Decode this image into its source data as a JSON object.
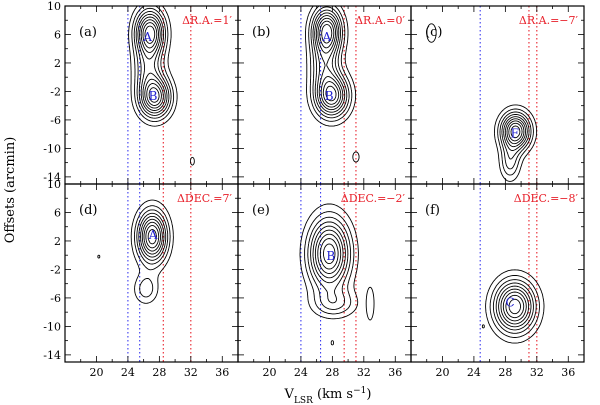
{
  "chart_data": {
    "type": "contour",
    "xlabel": "V",
    "xlabel_sub": "LSR",
    "xlabel_unit": " (km s",
    "xlabel_sup": "−1",
    "xlabel_close": ")",
    "ylabel": "Offsets (arcmin)",
    "xlim": [
      16,
      38
    ],
    "ylim": [
      -15,
      10
    ],
    "xticks": [
      20,
      24,
      28,
      32,
      36
    ],
    "yticks": [
      10,
      6,
      2,
      -2,
      -6,
      -10,
      -14
    ],
    "colors": {
      "blue_line": "#3a3af0",
      "red_line": "#e8202a",
      "offset_text": "#e8202a",
      "component_text": "#2020d0"
    },
    "panels": [
      {
        "label": "(a)",
        "offset": "ΔR.A.=1′",
        "blue_lines": [
          24,
          25.5
        ],
        "red_lines": [
          28.5,
          32
        ],
        "components": [
          {
            "name": "A",
            "v": 26.5,
            "offset": 5.8
          },
          {
            "name": "B",
            "v": 27.2,
            "offset": -2.5
          }
        ],
        "peaks": [
          {
            "v": 26.8,
            "o": 6.2,
            "sv": 1.3,
            "so": 2.3,
            "amp": 1.0
          },
          {
            "v": 27.4,
            "o": -2.8,
            "sv": 1.4,
            "so": 2.0,
            "amp": 0.95
          },
          {
            "v": 26.6,
            "o": 1.2,
            "sv": 1.3,
            "so": 2.2,
            "amp": 0.38
          }
        ],
        "blobs": [
          {
            "v": 32.2,
            "o": -11.8,
            "rv": 0.25,
            "ro": 0.55
          }
        ]
      },
      {
        "label": "(b)",
        "offset": "ΔR.A.=0′",
        "blue_lines": [
          24,
          26.5
        ],
        "red_lines": [
          29.5,
          31
        ],
        "components": [
          {
            "name": "A",
            "v": 27.3,
            "offset": 5.8
          },
          {
            "name": "B",
            "v": 27.6,
            "offset": -2.5
          }
        ],
        "peaks": [
          {
            "v": 27.3,
            "o": 6.4,
            "sv": 1.3,
            "so": 2.3,
            "amp": 1.0
          },
          {
            "v": 27.9,
            "o": -2.6,
            "sv": 1.5,
            "so": 2.1,
            "amp": 0.95
          },
          {
            "v": 27.0,
            "o": 1.6,
            "sv": 1.3,
            "so": 2.2,
            "amp": 0.4
          }
        ],
        "blobs": [
          {
            "v": 31.0,
            "o": -11.2,
            "rv": 0.4,
            "ro": 0.7
          }
        ]
      },
      {
        "label": "(c)",
        "offset": "ΔR.A.=−7′",
        "blue_lines": [
          24.8
        ],
        "red_lines": [
          31,
          32
        ],
        "components": [
          {
            "name": "F",
            "v": 29.2,
            "offset": -7.8
          }
        ],
        "peaks": [
          {
            "v": 29.3,
            "o": -7.6,
            "sv": 1.3,
            "so": 1.8,
            "amp": 1.0
          },
          {
            "v": 28.6,
            "o": -12.0,
            "sv": 0.9,
            "so": 1.8,
            "amp": 0.35
          }
        ],
        "blobs": [
          {
            "v": 18.6,
            "o": 6.2,
            "rv": 0.6,
            "ro": 1.3
          }
        ]
      },
      {
        "label": "(d)",
        "offset": "ΔDEC.=7′",
        "blue_lines": [
          24,
          25.5
        ],
        "red_lines": [
          28.5,
          32
        ],
        "components": [
          {
            "name": "A",
            "v": 27.2,
            "offset": 3.0
          }
        ],
        "peaks": [
          {
            "v": 27.1,
            "o": 2.6,
            "sv": 1.3,
            "so": 2.5,
            "amp": 1.0
          },
          {
            "v": 26.3,
            "o": -4.8,
            "sv": 1.1,
            "so": 1.5,
            "amp": 0.28
          }
        ],
        "blobs": [
          {
            "v": 20.3,
            "o": -0.2,
            "rv": 0.1,
            "ro": 0.2
          }
        ]
      },
      {
        "label": "(e)",
        "offset": "ΔDEC.=−2′",
        "blue_lines": [
          24,
          26.5
        ],
        "red_lines": [
          29.5,
          31
        ],
        "components": [
          {
            "name": "B",
            "v": 27.8,
            "offset": 0.0
          }
        ],
        "peaks": [
          {
            "v": 27.6,
            "o": 0.2,
            "sv": 1.8,
            "so": 3.4,
            "amp": 1.0
          },
          {
            "v": 28.3,
            "o": -6.8,
            "sv": 2.0,
            "so": 1.4,
            "amp": 0.3
          }
        ],
        "blobs": [
          {
            "v": 32.8,
            "o": -6.8,
            "rv": 0.5,
            "ro": 2.3
          },
          {
            "v": 28.0,
            "o": -12.3,
            "rv": 0.15,
            "ro": 0.3
          }
        ]
      },
      {
        "label": "(f)",
        "offset": "ΔDEC.=−8′",
        "blue_lines": [
          24.8
        ],
        "red_lines": [
          31,
          32
        ],
        "components": [
          {
            "name": "C",
            "v": 28.6,
            "offset": -6.5
          }
        ],
        "peaks": [
          {
            "v": 29.2,
            "o": -7.2,
            "sv": 1.8,
            "so": 2.5,
            "amp": 1.0
          }
        ],
        "blobs": [
          {
            "v": 25.2,
            "o": -10.0,
            "rv": 0.12,
            "ro": 0.22
          }
        ]
      }
    ]
  }
}
